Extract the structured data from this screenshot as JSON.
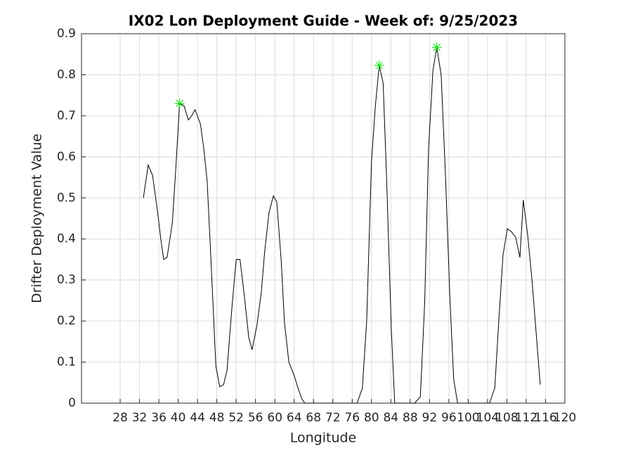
{
  "chart_data": {
    "type": "line",
    "title": "IX02 Lon Deployment Guide - Week of: 9/25/2023",
    "xlabel": "Longitude",
    "ylabel": "Drifter Deployment Value",
    "xlim": [
      20,
      120
    ],
    "xticks": [
      28,
      32,
      36,
      40,
      44,
      48,
      52,
      56,
      60,
      64,
      68,
      72,
      76,
      80,
      84,
      88,
      92,
      96,
      100,
      104,
      108,
      112,
      116,
      120
    ],
    "ylim": [
      0,
      0.9
    ],
    "yticks": [
      0,
      0.1,
      0.2,
      0.3,
      0.4,
      0.5,
      0.6,
      0.7,
      0.8,
      0.9
    ],
    "grid": true,
    "series": [
      {
        "color": "#000000",
        "marker": "none",
        "x": [
          32.8,
          33.8,
          34.7,
          35.7,
          36.4,
          37.0,
          37.7,
          38.8,
          39.5,
          40.3,
          41.2,
          42.1,
          42.8,
          43.5,
          44.6,
          45.3,
          46.0,
          46.7,
          47.8,
          48.6,
          49.4,
          50.1,
          51.1,
          52.0,
          52.8,
          53.7,
          54.6,
          55.3,
          56.3,
          57.2,
          57.9,
          58.8,
          59.7,
          60.4,
          61.3,
          62.0,
          62.9,
          64.0,
          64.9,
          65.6,
          66.2,
          77.0,
          78.1,
          79.0,
          80.0,
          80.8,
          81.6,
          82.4,
          83.1,
          84.1,
          84.8,
          88.9,
          90.1,
          91.0,
          91.8,
          92.7,
          93.5,
          94.4,
          95.3,
          96.2,
          97.0,
          97.8,
          104.4,
          105.5,
          106.3,
          107.2,
          108.1,
          108.9,
          109.8,
          110.7,
          111.4,
          112.3,
          113.2,
          114.0,
          114.9
        ],
        "values": [
          0.5,
          0.58,
          0.555,
          0.47,
          0.4,
          0.35,
          0.355,
          0.44,
          0.57,
          0.73,
          0.725,
          0.69,
          0.7,
          0.715,
          0.68,
          0.62,
          0.54,
          0.37,
          0.09,
          0.04,
          0.045,
          0.08,
          0.23,
          0.35,
          0.35,
          0.26,
          0.16,
          0.13,
          0.19,
          0.27,
          0.37,
          0.465,
          0.505,
          0.49,
          0.35,
          0.195,
          0.1,
          0.067,
          0.033,
          0.01,
          0,
          0,
          0.036,
          0.2,
          0.59,
          0.725,
          0.823,
          0.78,
          0.555,
          0.178,
          0,
          0,
          0.015,
          0.245,
          0.62,
          0.81,
          0.867,
          0.8,
          0.555,
          0.26,
          0.058,
          0,
          0,
          0.037,
          0.195,
          0.36,
          0.425,
          0.418,
          0.405,
          0.355,
          0.495,
          0.41,
          0.3,
          0.18,
          0.045
        ]
      },
      {
        "color": "#00dd00",
        "marker": "asterisk",
        "x": [
          40.3,
          81.6,
          93.5
        ],
        "values": [
          0.73,
          0.823,
          0.867
        ]
      }
    ]
  }
}
